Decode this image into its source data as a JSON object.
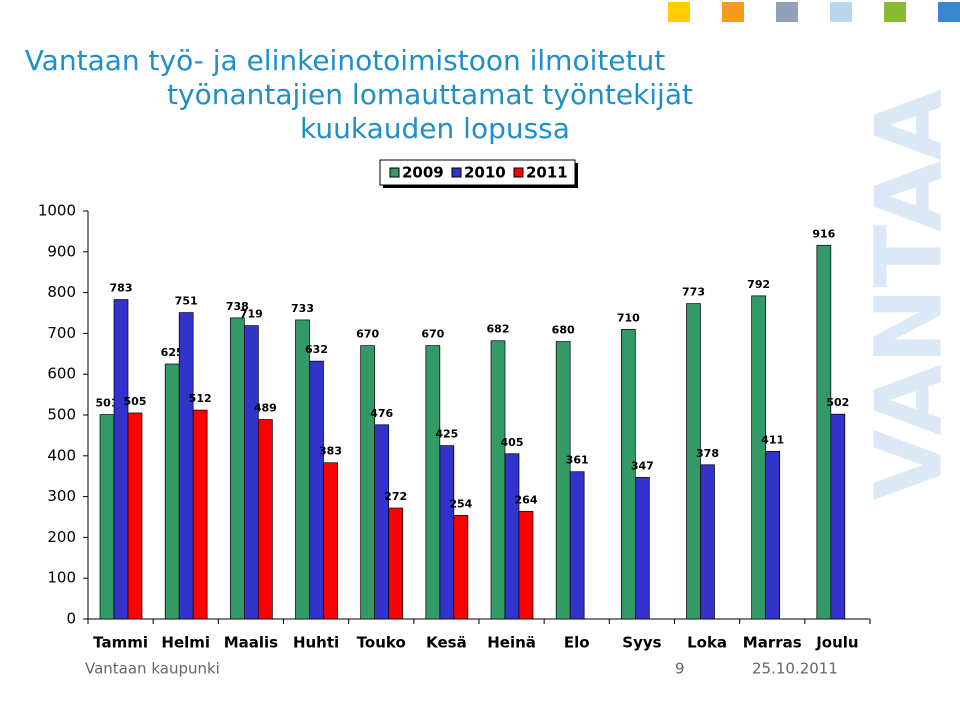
{
  "chart_data": {
    "type": "bar",
    "title": [
      "Vantaan työ- ja elinkeinotoimistoon ilmoitetut",
      "työnantajien lomauttamat työntekijät",
      "kuukauden lopussa"
    ],
    "categories": [
      "Tammi",
      "Helmi",
      "Maalis",
      "Huhti",
      "Touko",
      "Kesä",
      "Heinä",
      "Elo",
      "Syys",
      "Loka",
      "Marras",
      "Joulu"
    ],
    "series": [
      {
        "name": "2009",
        "color": "#339966",
        "values": [
          501,
          625,
          738,
          733,
          670,
          670,
          682,
          680,
          710,
          773,
          792,
          916
        ]
      },
      {
        "name": "2010",
        "color": "#3333cc",
        "values": [
          783,
          751,
          719,
          632,
          476,
          425,
          405,
          361,
          347,
          378,
          411,
          502
        ]
      },
      {
        "name": "2011",
        "color": "#ff0000",
        "values": [
          505,
          512,
          489,
          383,
          272,
          254,
          264,
          null,
          null,
          null,
          null,
          null
        ]
      }
    ],
    "ylim": [
      0,
      1000
    ],
    "yticks": [
      0,
      100,
      200,
      300,
      400,
      500,
      600,
      700,
      800,
      900,
      1000
    ],
    "legend": "top",
    "grid": false
  },
  "footer": {
    "left": "Vantaan kaupunki",
    "page": "9",
    "date": "25.10.2011"
  },
  "watermark": "VANTAA"
}
